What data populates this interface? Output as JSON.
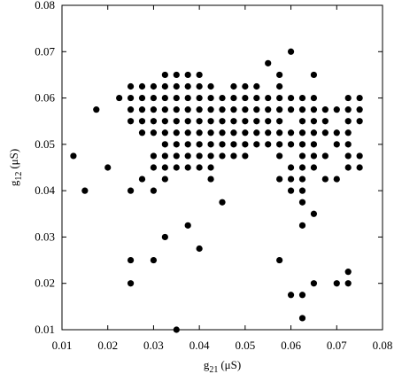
{
  "chart_data": {
    "type": "scatter",
    "xlabel": {
      "symbol": "g",
      "subscript": "21",
      "unit": "(μS)"
    },
    "ylabel": {
      "symbol": "g",
      "subscript": "12",
      "unit": "(μS)"
    },
    "color": "#000000",
    "xlim": [
      0.01,
      0.08
    ],
    "ylim": [
      0.01,
      0.08
    ],
    "xticks": [
      0.01,
      0.02,
      0.03,
      0.04,
      0.05,
      0.06,
      0.07,
      0.08
    ],
    "yticks": [
      0.01,
      0.02,
      0.03,
      0.04,
      0.05,
      0.06,
      0.07,
      0.08
    ],
    "x": [
      0.06,
      0.055,
      0.0325,
      0.035,
      0.0375,
      0.04,
      0.0575,
      0.065,
      0.025,
      0.0275,
      0.03,
      0.0325,
      0.035,
      0.0375,
      0.04,
      0.0425,
      0.0475,
      0.05,
      0.0525,
      0.0575,
      0.0225,
      0.025,
      0.0275,
      0.03,
      0.0325,
      0.035,
      0.0375,
      0.04,
      0.0425,
      0.045,
      0.0475,
      0.05,
      0.0525,
      0.055,
      0.0575,
      0.06,
      0.0625,
      0.065,
      0.0725,
      0.075,
      0.0175,
      0.025,
      0.0275,
      0.03,
      0.0325,
      0.035,
      0.0375,
      0.04,
      0.0425,
      0.045,
      0.0475,
      0.05,
      0.0525,
      0.055,
      0.0575,
      0.06,
      0.0625,
      0.065,
      0.0675,
      0.07,
      0.0725,
      0.075,
      0.025,
      0.0275,
      0.03,
      0.0325,
      0.035,
      0.0375,
      0.04,
      0.0425,
      0.045,
      0.0475,
      0.05,
      0.0525,
      0.055,
      0.0575,
      0.0625,
      0.065,
      0.0675,
      0.0725,
      0.075,
      0.0275,
      0.03,
      0.0325,
      0.035,
      0.0375,
      0.04,
      0.0425,
      0.045,
      0.0475,
      0.05,
      0.0525,
      0.055,
      0.0575,
      0.06,
      0.0625,
      0.065,
      0.0675,
      0.07,
      0.0725,
      0.0325,
      0.035,
      0.0375,
      0.04,
      0.0425,
      0.045,
      0.0475,
      0.05,
      0.0525,
      0.055,
      0.0575,
      0.06,
      0.0625,
      0.065,
      0.07,
      0.0725,
      0.0125,
      0.03,
      0.0325,
      0.035,
      0.0375,
      0.04,
      0.0425,
      0.045,
      0.0475,
      0.05,
      0.0575,
      0.0625,
      0.065,
      0.0675,
      0.0725,
      0.075,
      0.02,
      0.03,
      0.0325,
      0.035,
      0.0375,
      0.04,
      0.0425,
      0.06,
      0.0625,
      0.065,
      0.0725,
      0.075,
      0.0275,
      0.0325,
      0.0425,
      0.0575,
      0.06,
      0.0625,
      0.0675,
      0.07,
      0.015,
      0.025,
      0.03,
      0.06,
      0.0625,
      0.045,
      0.0625,
      0.065,
      0.0375,
      0.0625,
      0.0325,
      0.04,
      0.025,
      0.03,
      0.0575,
      0.0725,
      0.025,
      0.065,
      0.07,
      0.0725,
      0.06,
      0.0625,
      0.0625,
      0.035
    ],
    "values": [
      0.07,
      0.0675,
      0.065,
      0.065,
      0.065,
      0.065,
      0.065,
      0.065,
      0.0625,
      0.0625,
      0.0625,
      0.0625,
      0.0625,
      0.0625,
      0.0625,
      0.0625,
      0.0625,
      0.0625,
      0.0625,
      0.0625,
      0.06,
      0.06,
      0.06,
      0.06,
      0.06,
      0.06,
      0.06,
      0.06,
      0.06,
      0.06,
      0.06,
      0.06,
      0.06,
      0.06,
      0.06,
      0.06,
      0.06,
      0.06,
      0.06,
      0.06,
      0.0575,
      0.0575,
      0.0575,
      0.0575,
      0.0575,
      0.0575,
      0.0575,
      0.0575,
      0.0575,
      0.0575,
      0.0575,
      0.0575,
      0.0575,
      0.0575,
      0.0575,
      0.0575,
      0.0575,
      0.0575,
      0.0575,
      0.0575,
      0.0575,
      0.0575,
      0.055,
      0.055,
      0.055,
      0.055,
      0.055,
      0.055,
      0.055,
      0.055,
      0.055,
      0.055,
      0.055,
      0.055,
      0.055,
      0.055,
      0.055,
      0.055,
      0.055,
      0.055,
      0.055,
      0.0525,
      0.0525,
      0.0525,
      0.0525,
      0.0525,
      0.0525,
      0.0525,
      0.0525,
      0.0525,
      0.0525,
      0.0525,
      0.0525,
      0.0525,
      0.0525,
      0.0525,
      0.0525,
      0.0525,
      0.0525,
      0.0525,
      0.05,
      0.05,
      0.05,
      0.05,
      0.05,
      0.05,
      0.05,
      0.05,
      0.05,
      0.05,
      0.05,
      0.05,
      0.05,
      0.05,
      0.05,
      0.05,
      0.0475,
      0.0475,
      0.0475,
      0.0475,
      0.0475,
      0.0475,
      0.0475,
      0.0475,
      0.0475,
      0.0475,
      0.0475,
      0.0475,
      0.0475,
      0.0475,
      0.0475,
      0.0475,
      0.045,
      0.045,
      0.045,
      0.045,
      0.045,
      0.045,
      0.045,
      0.045,
      0.045,
      0.045,
      0.045,
      0.045,
      0.0425,
      0.0425,
      0.0425,
      0.0425,
      0.0425,
      0.0425,
      0.0425,
      0.0425,
      0.04,
      0.04,
      0.04,
      0.04,
      0.04,
      0.0375,
      0.0375,
      0.035,
      0.0325,
      0.0325,
      0.03,
      0.0275,
      0.025,
      0.025,
      0.025,
      0.0225,
      0.02,
      0.02,
      0.02,
      0.02,
      0.0175,
      0.0175,
      0.0125,
      0.01
    ]
  }
}
